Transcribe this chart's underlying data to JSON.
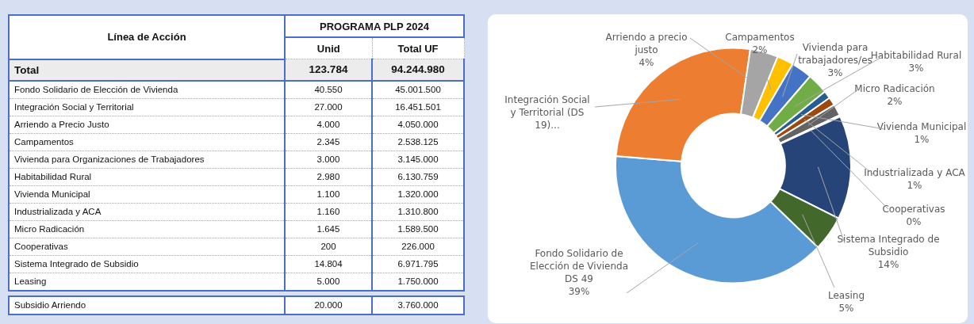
{
  "chart_data": [
    {
      "type": "other",
      "title": "PROGRAMA PLP 2024",
      "ylabel": "Línea de Acción",
      "categories": [
        "Total",
        "Fondo Solidario de Elección de Vivienda",
        "Integración Social y Territorial",
        "Arriendo a Precio Justo",
        "Campamentos",
        "Vivienda para Organizaciones de Trabajadores",
        "Habitabilidad Rural",
        "Vivienda Municipal",
        "Industrializada y ACA",
        "Micro Radicación",
        "Cooperativas",
        "Sistema Integrado de Subsidio",
        "Leasing",
        "Subsidio Arriendo"
      ],
      "series": [
        {
          "name": "Unid",
          "colors": [
            "#ececec",
            "#ffffff",
            "#ffffff",
            "#ffffff",
            "#ffffff",
            "#ffffff",
            "#ffffff",
            "#ffffff",
            "#ffffff",
            "#ffffff",
            "#ffffff",
            "#ffffff",
            "#ffffff",
            "#ffffff"
          ],
          "values": [
            123784,
            40550,
            27000,
            4000,
            2345,
            3000,
            2980,
            1100,
            1160,
            1645,
            200,
            14804,
            5000,
            20000
          ],
          "value_labels": [
            "123.784",
            "40.550",
            "27.000",
            "4.000",
            "2.345",
            "3.000",
            "2.980",
            "1.100",
            "1.160",
            "1.645",
            "200",
            "14.804",
            "5.000",
            "20.000"
          ]
        },
        {
          "name": "Total UF",
          "colors": [
            "#ececec",
            "#ffffff",
            "#ffffff",
            "#ffffff",
            "#ffffff",
            "#ffffff",
            "#ffffff",
            "#ffffff",
            "#ffffff",
            "#ffffff",
            "#ffffff",
            "#ffffff",
            "#ffffff",
            "#ffffff"
          ],
          "values": [
            94244980,
            45001500,
            16451501,
            4050000,
            2538125,
            3145000,
            6130759,
            1320000,
            1310800,
            1589500,
            226000,
            6971795,
            1750000,
            3760000
          ],
          "value_labels": [
            "94.244.980",
            "45.001.500",
            "16.451.501",
            "4.050.000",
            "2.538.125",
            "3.145.000",
            "6.130.759",
            "1.320.000",
            "1.310.800",
            "1.589.500",
            "226.000",
            "6.971.795",
            "1.750.000",
            "3.760.000"
          ]
        }
      ]
    },
    {
      "type": "donut",
      "categories": [
        "Fondo Solidario de Elección de Vivienda DS 49",
        "Integración Social y Territorial (DS 19)...",
        "Arriendo a precio justo",
        "Campamentos",
        "Vivienda para trabajadores/es",
        "Habitabilidad Rural",
        "Vivienda Municipal",
        "Industrializada y ACA",
        "Micro Radicación",
        "Cooperativas",
        "Sistema Integrado de Subsidio",
        "Leasing"
      ],
      "values": [
        39.07,
        26.02,
        3.85,
        2.26,
        2.89,
        2.87,
        1.06,
        1.12,
        1.59,
        0.19,
        14.26,
        4.82
      ],
      "value_labels": [
        "39%",
        null,
        "4%",
        "2%",
        "3%",
        "3%",
        "1%",
        "1%",
        "2%",
        "0%",
        "14%",
        "5%"
      ],
      "colors": [
        "#5b9bd5",
        "#ed7d31",
        "#a5a5a5",
        "#ffc000",
        "#4472c4",
        "#70ad47",
        "#255e91",
        "#9e480e",
        "#636363",
        "#997300",
        "#264478",
        "#43682b"
      ],
      "legend": false
    }
  ]
}
